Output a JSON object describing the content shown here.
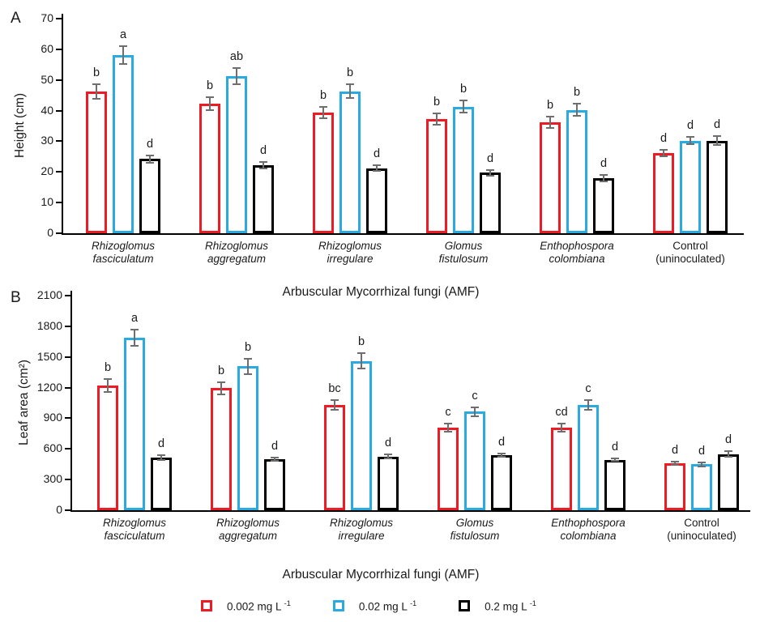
{
  "chart_data": [
    {
      "id": "A",
      "type": "bar",
      "panel_label": "A",
      "title": "",
      "xlabel": "Arbuscular Mycorrhizal fungi (AMF)",
      "ylabel": "Height (cm)",
      "ylim": [
        0,
        70
      ],
      "yticks": [
        0,
        10,
        20,
        30,
        40,
        50,
        60,
        70
      ],
      "grid": false,
      "categories": [
        {
          "line1": "Rhizoglomus",
          "line2": "fasciculatum",
          "italic": true
        },
        {
          "line1": "Rhizoglomus",
          "line2": "aggregatum",
          "italic": true
        },
        {
          "line1": "Rhizoglomus",
          "line2": "irregulare",
          "italic": true
        },
        {
          "line1": "Glomus",
          "line2": "fistulosum",
          "italic": true
        },
        {
          "line1": "Enthophospora",
          "line2": "colombiana",
          "italic": true
        },
        {
          "line1": "Control",
          "line2": "(uninoculated)",
          "italic": false
        }
      ],
      "series": [
        {
          "name": "0.002 mg L-1",
          "color": "#ed1c24",
          "values": [
            46.2,
            42.3,
            39.4,
            37.2,
            36.2,
            26.2
          ],
          "errors": [
            2.3,
            2.1,
            1.9,
            1.8,
            1.9,
            1.1
          ],
          "letters": [
            "b",
            "b",
            "b",
            "b",
            "b",
            "d"
          ]
        },
        {
          "name": "0.02 mg L-1",
          "color": "#29abe2",
          "values": [
            58.2,
            51.2,
            46.3,
            41.3,
            40.2,
            30.2
          ],
          "errors": [
            2.9,
            2.6,
            2.2,
            1.9,
            2.0,
            1.2
          ],
          "letters": [
            "a",
            "ab",
            "b",
            "b",
            "b",
            "d"
          ]
        },
        {
          "name": "0.2 mg L-1",
          "color": "#000000",
          "values": [
            24.2,
            22.2,
            21.2,
            19.7,
            17.9,
            30.2
          ],
          "errors": [
            1.1,
            1.0,
            0.9,
            0.9,
            1.0,
            1.4
          ],
          "letters": [
            "d",
            "d",
            "d",
            "d",
            "d",
            "d"
          ]
        }
      ]
    },
    {
      "id": "B",
      "type": "bar",
      "panel_label": "B",
      "title": "",
      "xlabel": "Arbuscular Mycorrhizal fungi (AMF)",
      "ylabel": "Leaf area (cm²)",
      "ylim": [
        0,
        2100
      ],
      "yticks": [
        0,
        300,
        600,
        900,
        1200,
        1500,
        1800,
        2100
      ],
      "grid": false,
      "categories": [
        {
          "line1": "Rhizoglomus",
          "line2": "fasciculatum",
          "italic": true
        },
        {
          "line1": "Rhizoglomus",
          "line2": "aggregatum",
          "italic": true
        },
        {
          "line1": "Rhizoglomus",
          "line2": "irregulare",
          "italic": true
        },
        {
          "line1": "Glomus",
          "line2": "fistulosum",
          "italic": true
        },
        {
          "line1": "Enthophospora",
          "line2": "colombiana",
          "italic": true
        },
        {
          "line1": "Control",
          "line2": "(uninoculated)",
          "italic": false
        }
      ],
      "series": [
        {
          "name": "0.002 mg L-1",
          "color": "#ed1c24",
          "values": [
            1220,
            1195,
            1030,
            805,
            805,
            460
          ],
          "errors": [
            60,
            60,
            50,
            40,
            40,
            15
          ],
          "letters": [
            "b",
            "b",
            "bc",
            "c",
            "cd",
            "d"
          ]
        },
        {
          "name": "0.02 mg L-1",
          "color": "#29abe2",
          "values": [
            1690,
            1410,
            1460,
            965,
            1030,
            450
          ],
          "errors": [
            80,
            75,
            75,
            45,
            45,
            20
          ],
          "letters": [
            "a",
            "b",
            "b",
            "c",
            "c",
            "d"
          ]
        },
        {
          "name": "0.2 mg L-1",
          "color": "#000000",
          "values": [
            515,
            500,
            525,
            540,
            495,
            550
          ],
          "errors": [
            20,
            15,
            20,
            15,
            15,
            30
          ],
          "letters": [
            "d",
            "d",
            "d",
            "d",
            "d",
            "d"
          ]
        }
      ]
    }
  ],
  "legend": {
    "position": "bottom",
    "items": [
      {
        "base": "0.002 mg L",
        "sup": "-1",
        "color": "#ed1c24"
      },
      {
        "base": "0.02 mg L",
        "sup": "-1",
        "color": "#29abe2"
      },
      {
        "base": "0.2 mg L",
        "sup": "-1",
        "color": "#000000"
      }
    ]
  },
  "colors": {
    "series_red": "#ed1c24",
    "series_blue": "#29abe2",
    "series_black": "#000000",
    "error_bar": "#6e6e6e",
    "text": "#1a1a1a",
    "background": "#ffffff"
  }
}
